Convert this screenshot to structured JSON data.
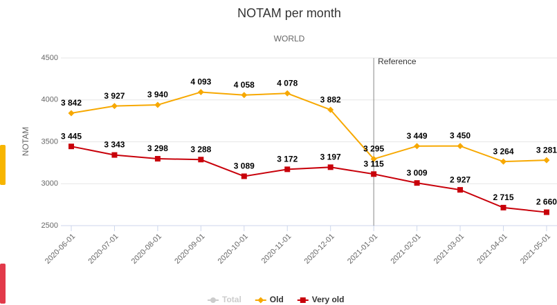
{
  "chart_data": {
    "type": "line",
    "title": "NOTAM per month",
    "subtitle": "WORLD",
    "y_label": "NOTAM",
    "categories": [
      "2020-06-01",
      "2020-07-01",
      "2020-08-01",
      "2020-09-01",
      "2020-10-01",
      "2020-11-01",
      "2020-12-01",
      "2021-01-01",
      "2021-02-01",
      "2021-03-01",
      "2021-04-01",
      "2021-05-01"
    ],
    "series": [
      {
        "name": "Old",
        "color": "#f7a800",
        "marker": "diamond",
        "values": [
          3842,
          3927,
          3940,
          4093,
          4058,
          4078,
          3882,
          3295,
          3449,
          3450,
          3264,
          3281
        ],
        "value_labels": [
          "3 842",
          "3 927",
          "3 940",
          "4 093",
          "4 058",
          "4 078",
          "3 882",
          "3 295",
          "3 449",
          "3 450",
          "3 264",
          "3 281"
        ]
      },
      {
        "name": "Very old",
        "color": "#c8000a",
        "marker": "square",
        "values": [
          3445,
          3343,
          3298,
          3288,
          3089,
          3172,
          3197,
          3115,
          3009,
          2927,
          2715,
          2660
        ],
        "value_labels": [
          "3 445",
          "3 343",
          "3 298",
          "3 288",
          "3 089",
          "3 172",
          "3 197",
          "3 115",
          "3 009",
          "2 927",
          "2 715",
          "2 660"
        ]
      }
    ],
    "hidden_legend": [
      {
        "name": "Total",
        "color": "#cccccc"
      }
    ],
    "annotation": {
      "text": "Reference",
      "x": "2021-01-01"
    },
    "ylim": [
      2500,
      4500
    ],
    "yticks": [
      2500,
      3000,
      3500,
      4000,
      4500
    ],
    "grid": true
  }
}
